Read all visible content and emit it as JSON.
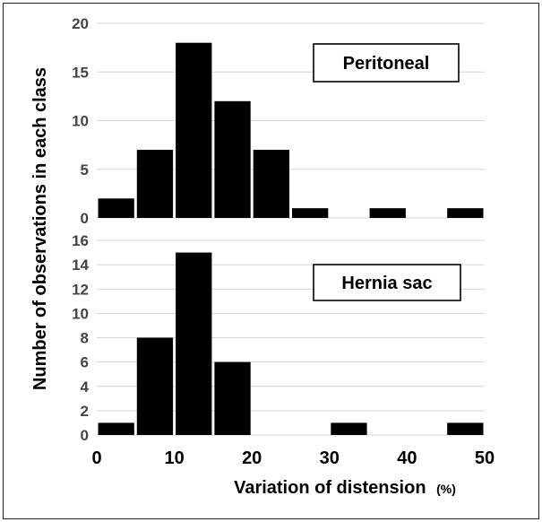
{
  "chart_data": [
    {
      "type": "bar",
      "label": "Peritoneal",
      "x_centers": [
        2.5,
        7.5,
        12.5,
        17.5,
        22.5,
        27.5,
        32.5,
        37.5,
        42.5,
        47.5
      ],
      "values": [
        2,
        7,
        18,
        12,
        7,
        1,
        0,
        1,
        0,
        1
      ],
      "ylim": [
        0,
        20
      ],
      "yticks": [
        0,
        5,
        10,
        15,
        20
      ],
      "grid": true
    },
    {
      "type": "bar",
      "label": "Hernia sac",
      "x_centers": [
        2.5,
        7.5,
        12.5,
        17.5,
        22.5,
        27.5,
        32.5,
        37.5,
        42.5,
        47.5
      ],
      "values": [
        1,
        8,
        15,
        6,
        0,
        0,
        1,
        0,
        0,
        1
      ],
      "ylim": [
        0,
        16
      ],
      "yticks": [
        0,
        2,
        4,
        6,
        8,
        10,
        12,
        14,
        16
      ],
      "grid": true
    }
  ],
  "axes": {
    "ylabel": "Number of observations in each class",
    "xlabel": "Variation of distension",
    "xunit": "(%)",
    "xlim": [
      0,
      50
    ],
    "xticks": [
      0,
      10,
      20,
      30,
      40,
      50
    ]
  }
}
